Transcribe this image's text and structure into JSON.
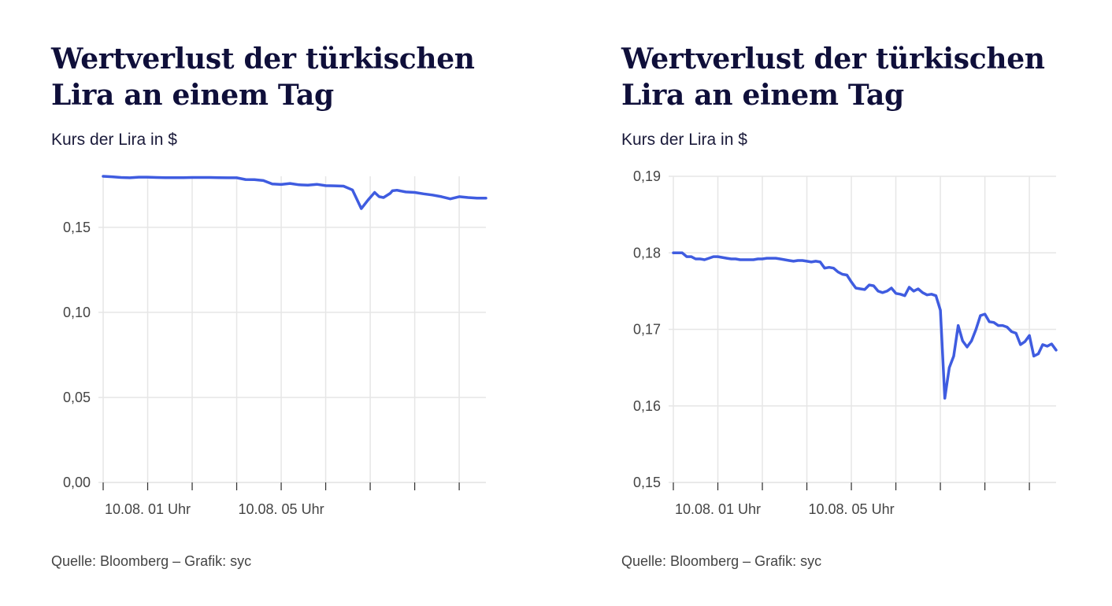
{
  "charts": [
    {
      "title_line1": "Wertverlust der türkischen",
      "title_line2": "Lira an einem Tag",
      "subtitle": "Kurs der Lira in $",
      "source": "Quelle:  Bloomberg – Grafik: syc"
    },
    {
      "title_line1": "Wertverlust der türkischen",
      "title_line2": "Lira an einem Tag",
      "subtitle": "Kurs der Lira in $",
      "source": "Quelle:  Bloomberg – Grafik: syc"
    }
  ],
  "colors": {
    "line": "#3f5ce0",
    "grid": "#e6e6e6",
    "axis": "#333333"
  },
  "chart_data": [
    {
      "type": "line",
      "title": "Wertverlust der türkischen Lira an einem Tag",
      "ylabel": "Kurs der Lira in $",
      "ylim": [
        0.0,
        0.18
      ],
      "yticks": [
        0.0,
        0.05,
        0.1,
        0.15
      ],
      "ytick_labels": [
        "0,00",
        "0,05",
        "0,10",
        "0,15"
      ],
      "xlim": [
        0,
        8.6
      ],
      "xticks": [
        0,
        1,
        2,
        3,
        4,
        5,
        6,
        7,
        8
      ],
      "xtick_labels": [
        "10.08. 01 Uhr",
        "10.08. 05 Uhr"
      ],
      "xtick_label_positions": [
        1,
        4
      ],
      "grid": true,
      "series": [
        {
          "x": [
            0,
            0.2,
            0.4,
            0.6,
            0.8,
            1.0,
            1.2,
            1.4,
            1.6,
            1.8,
            2.0,
            2.2,
            2.4,
            2.6,
            2.8,
            3.0,
            3.2,
            3.4,
            3.6,
            3.8,
            4.0,
            4.2,
            4.4,
            4.6,
            4.8,
            5.0,
            5.2,
            5.4,
            5.6,
            5.8,
            5.95,
            6.1,
            6.2,
            6.3,
            6.45,
            6.5,
            6.6,
            6.8,
            7.0,
            7.2,
            7.4,
            7.6,
            7.8,
            8.0,
            8.2,
            8.4,
            8.6
          ],
          "y": [
            0.18,
            0.1797,
            0.1793,
            0.1791,
            0.1795,
            0.1795,
            0.1793,
            0.1792,
            0.1792,
            0.1792,
            0.1793,
            0.1793,
            0.1793,
            0.1792,
            0.1791,
            0.1791,
            0.1781,
            0.178,
            0.1775,
            0.1755,
            0.1752,
            0.1758,
            0.175,
            0.1748,
            0.1753,
            0.1745,
            0.1744,
            0.1742,
            0.172,
            0.161,
            0.166,
            0.1705,
            0.168,
            0.1675,
            0.17,
            0.1715,
            0.1718,
            0.1708,
            0.1705,
            0.1697,
            0.169,
            0.168,
            0.1667,
            0.168,
            0.1675,
            0.1672,
            0.1672
          ]
        }
      ]
    },
    {
      "type": "line",
      "title": "Wertverlust der türkischen Lira an einem Tag",
      "ylabel": "Kurs der Lira in $",
      "ylim": [
        0.15,
        0.19
      ],
      "yticks": [
        0.15,
        0.16,
        0.17,
        0.18,
        0.19
      ],
      "ytick_labels": [
        "0,15",
        "0,16",
        "0,17",
        "0,18",
        "0,19"
      ],
      "xlim": [
        0,
        8.6
      ],
      "xticks": [
        0,
        1,
        2,
        3,
        4,
        5,
        6,
        7,
        8
      ],
      "xtick_labels": [
        "10.08. 01 Uhr",
        "10.08. 05 Uhr"
      ],
      "xtick_label_positions": [
        1,
        4
      ],
      "grid": true,
      "series": [
        {
          "x": [
            0,
            0.1,
            0.2,
            0.3,
            0.4,
            0.5,
            0.6,
            0.7,
            0.8,
            0.9,
            1.0,
            1.1,
            1.2,
            1.3,
            1.4,
            1.5,
            1.6,
            1.7,
            1.8,
            1.9,
            2.0,
            2.1,
            2.2,
            2.3,
            2.4,
            2.5,
            2.6,
            2.7,
            2.8,
            2.9,
            3.0,
            3.1,
            3.2,
            3.3,
            3.4,
            3.5,
            3.6,
            3.7,
            3.8,
            3.9,
            4.0,
            4.1,
            4.2,
            4.3,
            4.4,
            4.5,
            4.6,
            4.7,
            4.8,
            4.9,
            5.0,
            5.1,
            5.2,
            5.3,
            5.4,
            5.5,
            5.6,
            5.7,
            5.8,
            5.9,
            6.0,
            6.1,
            6.15,
            6.2,
            6.3,
            6.4,
            6.5,
            6.6,
            6.7,
            6.8,
            6.9,
            7.0,
            7.1,
            7.2,
            7.3,
            7.4,
            7.5,
            7.6,
            7.7,
            7.8,
            7.9,
            8.0,
            8.1,
            8.2,
            8.3,
            8.4,
            8.5,
            8.6
          ],
          "y": [
            0.18,
            0.18,
            0.18,
            0.1795,
            0.1795,
            0.1792,
            0.1792,
            0.1791,
            0.1793,
            0.1795,
            0.1795,
            0.1794,
            0.1793,
            0.1792,
            0.1792,
            0.1791,
            0.1791,
            0.1791,
            0.1791,
            0.1792,
            0.1792,
            0.1793,
            0.1793,
            0.1793,
            0.1792,
            0.1791,
            0.179,
            0.1789,
            0.179,
            0.179,
            0.1789,
            0.1788,
            0.1789,
            0.1788,
            0.178,
            0.1781,
            0.178,
            0.1775,
            0.1772,
            0.1771,
            0.1762,
            0.1754,
            0.1753,
            0.1752,
            0.1758,
            0.1757,
            0.175,
            0.1748,
            0.175,
            0.1754,
            0.1747,
            0.1746,
            0.1744,
            0.1755,
            0.175,
            0.1753,
            0.1748,
            0.1745,
            0.1746,
            0.1744,
            0.1725,
            0.161,
            0.163,
            0.165,
            0.1665,
            0.1705,
            0.1685,
            0.1677,
            0.1685,
            0.17,
            0.1718,
            0.172,
            0.171,
            0.1709,
            0.1705,
            0.1705,
            0.1703,
            0.1697,
            0.1695,
            0.168,
            0.1684,
            0.1692,
            0.1665,
            0.1668,
            0.168,
            0.1678,
            0.1681,
            0.1673
          ]
        }
      ]
    }
  ]
}
